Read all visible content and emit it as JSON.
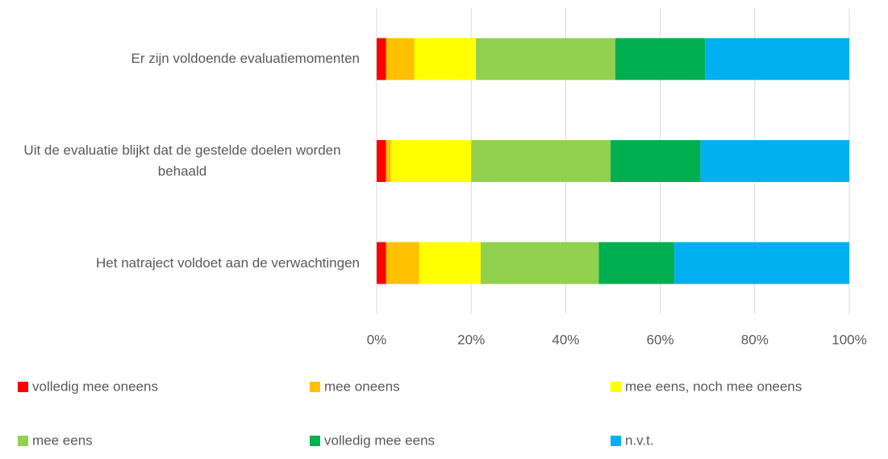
{
  "chart_data": {
    "type": "stacked_bar_horizontal",
    "categories": [
      "Er zijn voldoende evaluatiemomenten",
      "Uit de evaluatie blijkt dat de gestelde doelen worden behaald",
      "Het natraject voldoet aan de verwachtingen"
    ],
    "series": [
      {
        "name": "volledig  mee oneens",
        "color": "#ff0000",
        "values": [
          2,
          2,
          2
        ]
      },
      {
        "name": "mee oneens",
        "color": "#ffc000",
        "values": [
          6,
          1,
          7
        ]
      },
      {
        "name": "mee eens, noch mee oneens",
        "color": "#ffff00",
        "values": [
          13,
          17,
          13
        ]
      },
      {
        "name": "mee eens",
        "color": "#92d050",
        "values": [
          29.5,
          29.5,
          25
        ]
      },
      {
        "name": "volledig  mee eens",
        "color": "#00b050",
        "values": [
          19,
          19,
          16
        ]
      },
      {
        "name": "n.v.t.",
        "color": "#00b0f0",
        "values": [
          30.5,
          31.5,
          37
        ]
      }
    ],
    "xlim": [
      0,
      100
    ],
    "xticks": [
      {
        "value": 0,
        "label": "0%"
      },
      {
        "value": 20,
        "label": "20%"
      },
      {
        "value": 40,
        "label": "40%"
      },
      {
        "value": 60,
        "label": "60%"
      },
      {
        "value": 80,
        "label": "80%"
      },
      {
        "value": 100,
        "label": "100%"
      }
    ],
    "grid": true
  }
}
